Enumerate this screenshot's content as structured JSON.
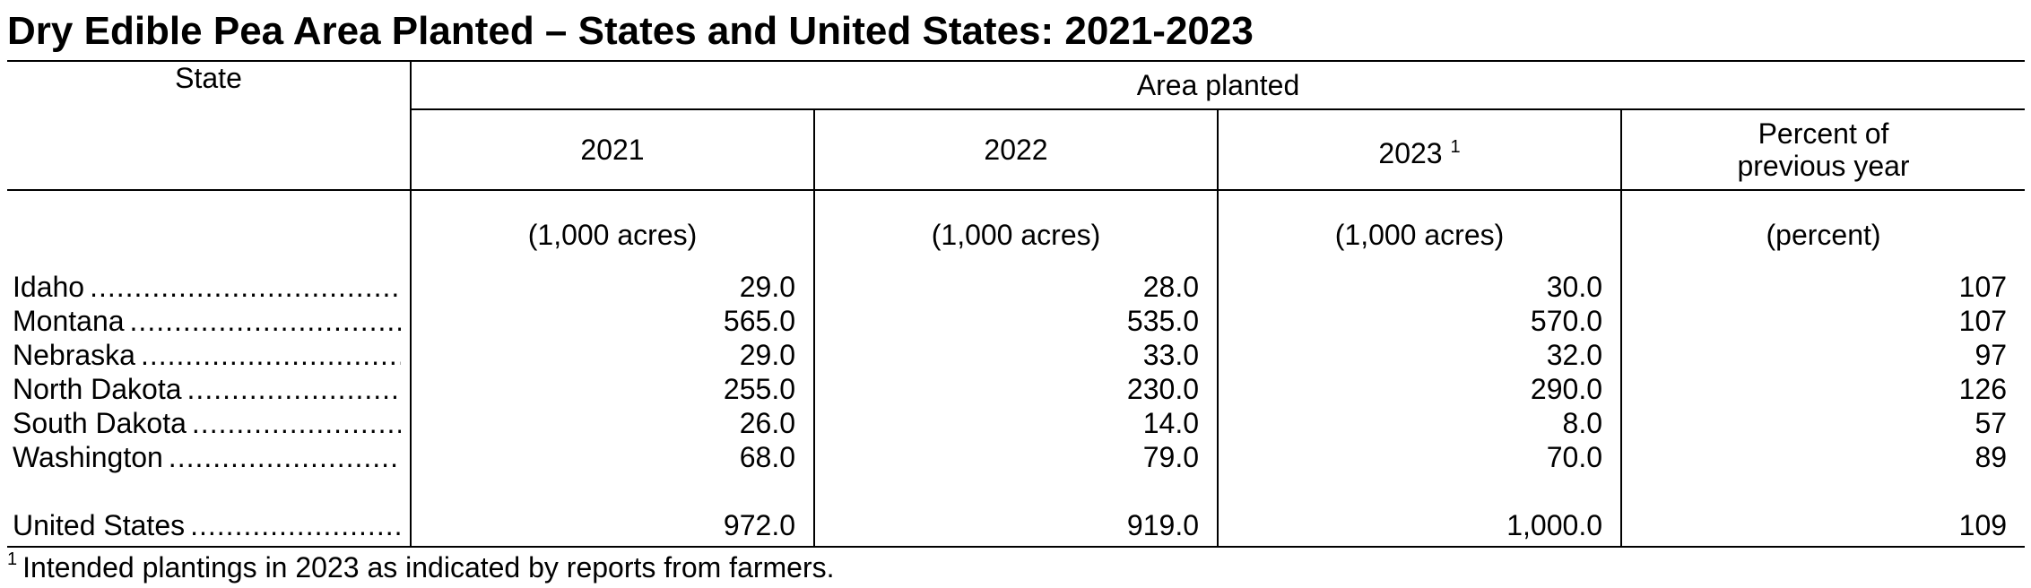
{
  "title": "Dry Edible Pea Area Planted – States and United States: 2021-2023",
  "header": {
    "state": "State",
    "group": "Area planted",
    "columns": [
      {
        "label": "2021",
        "footnote": ""
      },
      {
        "label": "2022",
        "footnote": ""
      },
      {
        "label": "2023",
        "footnote": "1"
      },
      {
        "label": "Percent of previous year",
        "footnote": ""
      }
    ],
    "units": [
      "(1,000 acres)",
      "(1,000 acres)",
      "(1,000 acres)",
      "(percent)"
    ]
  },
  "rows": [
    {
      "state": "Idaho",
      "values": [
        "29.0",
        "28.0",
        "30.0",
        "107"
      ]
    },
    {
      "state": "Montana",
      "values": [
        "565.0",
        "535.0",
        "570.0",
        "107"
      ]
    },
    {
      "state": "Nebraska",
      "values": [
        "29.0",
        "33.0",
        "32.0",
        "97"
      ]
    },
    {
      "state": "North Dakota",
      "values": [
        "255.0",
        "230.0",
        "290.0",
        "126"
      ]
    },
    {
      "state": "South Dakota",
      "values": [
        "26.0",
        "14.0",
        "8.0",
        "57"
      ]
    },
    {
      "state": "Washington",
      "values": [
        "68.0",
        "79.0",
        "70.0",
        "89"
      ]
    }
  ],
  "total": {
    "state": "United States",
    "values": [
      "972.0",
      "919.0",
      "1,000.0",
      "109"
    ]
  },
  "footnote": {
    "marker": "1",
    "text": "Intended plantings in 2023 as indicated by reports from farmers."
  }
}
